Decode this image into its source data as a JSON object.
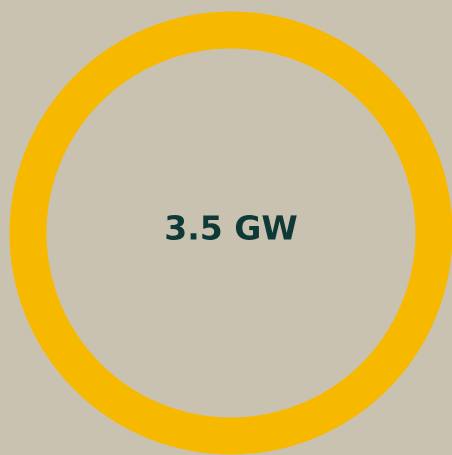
{
  "indicator": {
    "label": "3.5 GW"
  }
}
